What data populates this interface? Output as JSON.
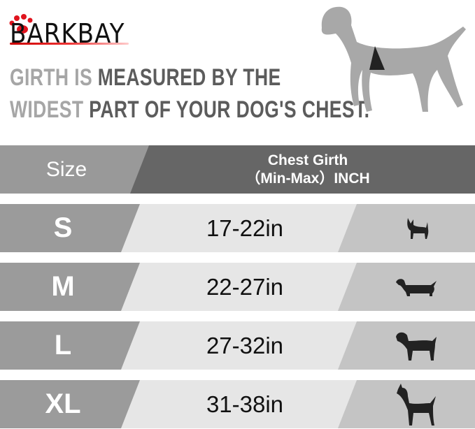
{
  "brand": {
    "logo_text": "BARKBAY",
    "paw_color": "#e0141e"
  },
  "headline": {
    "line1": {
      "light": "GIRTH IS ",
      "dark": "MEASURED BY THE"
    },
    "line2": {
      "light": "WIDEST ",
      "dark": "PART OF YOUR DOG'S CHEST."
    }
  },
  "table": {
    "header": {
      "size": "Size",
      "girth_line1": "Chest Girth",
      "girth_line2": "（Min-Max）INCH"
    },
    "rows": [
      {
        "size": "S",
        "girth": "17-22in",
        "icon": "chihuahua-icon"
      },
      {
        "size": "M",
        "girth": "22-27in",
        "icon": "dachshund-icon"
      },
      {
        "size": "L",
        "girth": "27-32in",
        "icon": "labrador-icon"
      },
      {
        "size": "XL",
        "girth": "31-38in",
        "icon": "great-dane-icon"
      }
    ]
  },
  "colors": {
    "header_left": "#999999",
    "header_right": "#666666",
    "cell_left": "#9b9b9b",
    "cell_mid": "#e6e6e6",
    "cell_right": "#c4c4c4"
  }
}
